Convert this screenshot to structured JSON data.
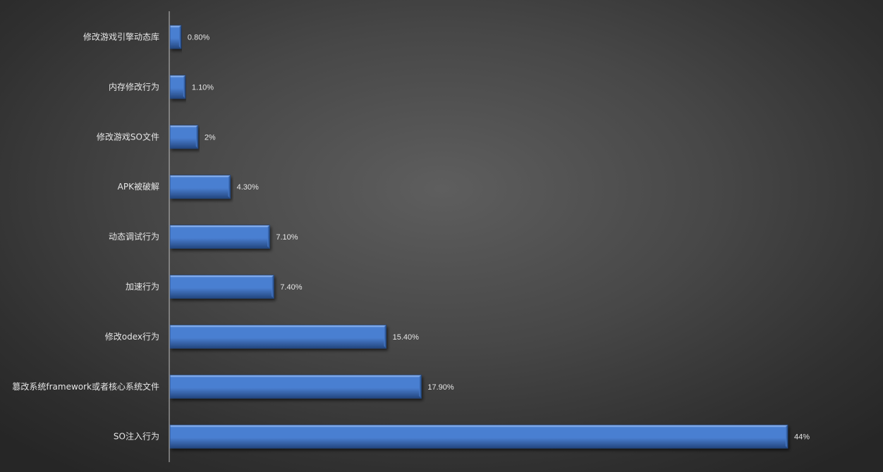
{
  "chart_data": {
    "type": "bar",
    "orientation": "horizontal",
    "title": "",
    "xlabel": "",
    "ylabel": "",
    "categories": [
      "修改游戏引擎动态库",
      "内存修改行为",
      "修改游戏SO文件",
      "APK被破解",
      "动态调试行为",
      "加速行为",
      "修改odex行为",
      "篡改系统framework或者核心系统文件",
      "SO注入行为"
    ],
    "values": [
      0.8,
      1.1,
      2,
      4.3,
      7.1,
      7.4,
      15.4,
      17.9,
      44
    ],
    "value_labels": [
      "0.80%",
      "1.10%",
      "2%",
      "4.30%",
      "7.10%",
      "7.40%",
      "15.40%",
      "17.90%",
      "44%"
    ],
    "xlim": [
      0,
      44
    ],
    "grid": false,
    "legend": "none",
    "bar_style": "3d-bevel",
    "bar_color": "#4a7fd1",
    "bar_highlight": "#8db4ee",
    "bar_shadow": "#23467e",
    "background_color": "#4a4a4a",
    "text_color": "#e6e6e6",
    "axis_color": "#a8a8a8"
  }
}
